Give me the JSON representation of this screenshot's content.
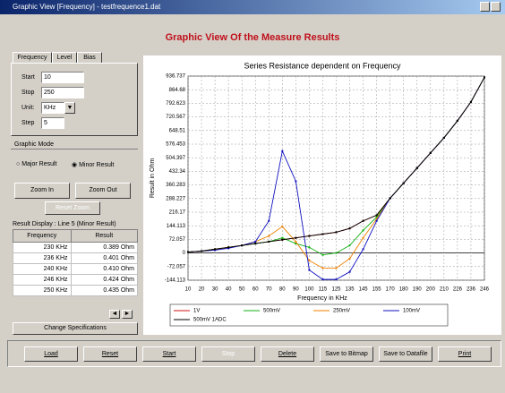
{
  "window": {
    "title": "Graphic View [Frequency] - testfrequence1.dat"
  },
  "header": {
    "title": "Graphic View Of the Measure Results"
  },
  "tabs": [
    "Frequency",
    "Level",
    "Bias"
  ],
  "settings": {
    "start_label": "Start",
    "start": "10",
    "stop_label": "Stop",
    "stop": "250",
    "unit_label": "Unit:",
    "unit": "KHz",
    "step_label": "Step",
    "step": "5"
  },
  "graphic_mode": {
    "title": "Graphic Mode",
    "options": [
      "Major Result",
      "Minor Result"
    ]
  },
  "zoom": {
    "buttons": [
      "Zoom In",
      "Zoom Out",
      "Reset Zoom"
    ]
  },
  "result_display": {
    "title": "Result Display : Line 5 (Minor Result)",
    "columns": [
      "Frequency",
      "Result"
    ],
    "rows": [
      [
        "230 KHz",
        "0.389 Ohm"
      ],
      [
        "236 KHz",
        "0.401 Ohm"
      ],
      [
        "240 KHz",
        "0.410 Ohm"
      ],
      [
        "246 KHz",
        "0.424 Ohm"
      ],
      [
        "250 KHz",
        "0.435 Ohm"
      ]
    ]
  },
  "change_button": "Change Specifications",
  "buttons": [
    "Load",
    "Reset",
    "Start",
    "Stop",
    "Delete",
    "Save to Bitmap",
    "Save to Datafile",
    "Print"
  ],
  "chart_data": {
    "type": "line",
    "title": "Series Resistance dependent on Frequency",
    "x_label": "Frequency in KHz",
    "y_label": "Result in Ohm",
    "categories": [
      "10",
      "20",
      "30",
      "40",
      "50",
      "60",
      "70",
      "80",
      "90",
      "100",
      "115",
      "125",
      "135",
      "145",
      "155",
      "170",
      "180",
      "190",
      "200",
      "210",
      "226",
      "236",
      "246"
    ],
    "ylim": [
      -144.113,
      936.737
    ],
    "yticks": [
      936.737,
      864.68,
      792.623,
      720.567,
      648.51,
      576.453,
      504.397,
      432.34,
      360.283,
      288.227,
      216.17,
      144.113,
      72.057,
      0,
      -72.057,
      -144.113
    ],
    "grid": true,
    "series": [
      {
        "name": "1V",
        "color": "#d01010",
        "values": [
          5,
          10,
          20,
          30,
          40,
          50,
          60,
          70,
          80,
          90,
          100,
          110,
          130,
          170,
          200,
          290,
          370,
          450,
          530,
          610,
          700,
          800,
          930
        ]
      },
      {
        "name": "500mV",
        "color": "#10b010",
        "values": [
          5,
          10,
          20,
          30,
          40,
          50,
          60,
          80,
          50,
          30,
          -10,
          0,
          40,
          120,
          190,
          290,
          370,
          450,
          530,
          610,
          700,
          800,
          930
        ]
      },
      {
        "name": "250mV",
        "color": "#f08000",
        "values": [
          5,
          10,
          20,
          30,
          40,
          60,
          90,
          140,
          60,
          -40,
          -80,
          -80,
          -30,
          80,
          180,
          290,
          370,
          450,
          530,
          610,
          700,
          800,
          930
        ]
      },
      {
        "name": "100mV",
        "color": "#1010c0",
        "values": [
          5,
          10,
          15,
          25,
          40,
          60,
          170,
          540,
          380,
          -90,
          -140,
          -140,
          -100,
          20,
          170,
          290,
          370,
          450,
          530,
          610,
          700,
          800,
          930
        ]
      },
      {
        "name": "500mV 1ADC",
        "color": "#000000",
        "values": [
          5,
          10,
          20,
          30,
          40,
          50,
          60,
          70,
          80,
          90,
          100,
          110,
          130,
          170,
          200,
          290,
          370,
          450,
          530,
          610,
          700,
          800,
          930
        ]
      }
    ]
  }
}
